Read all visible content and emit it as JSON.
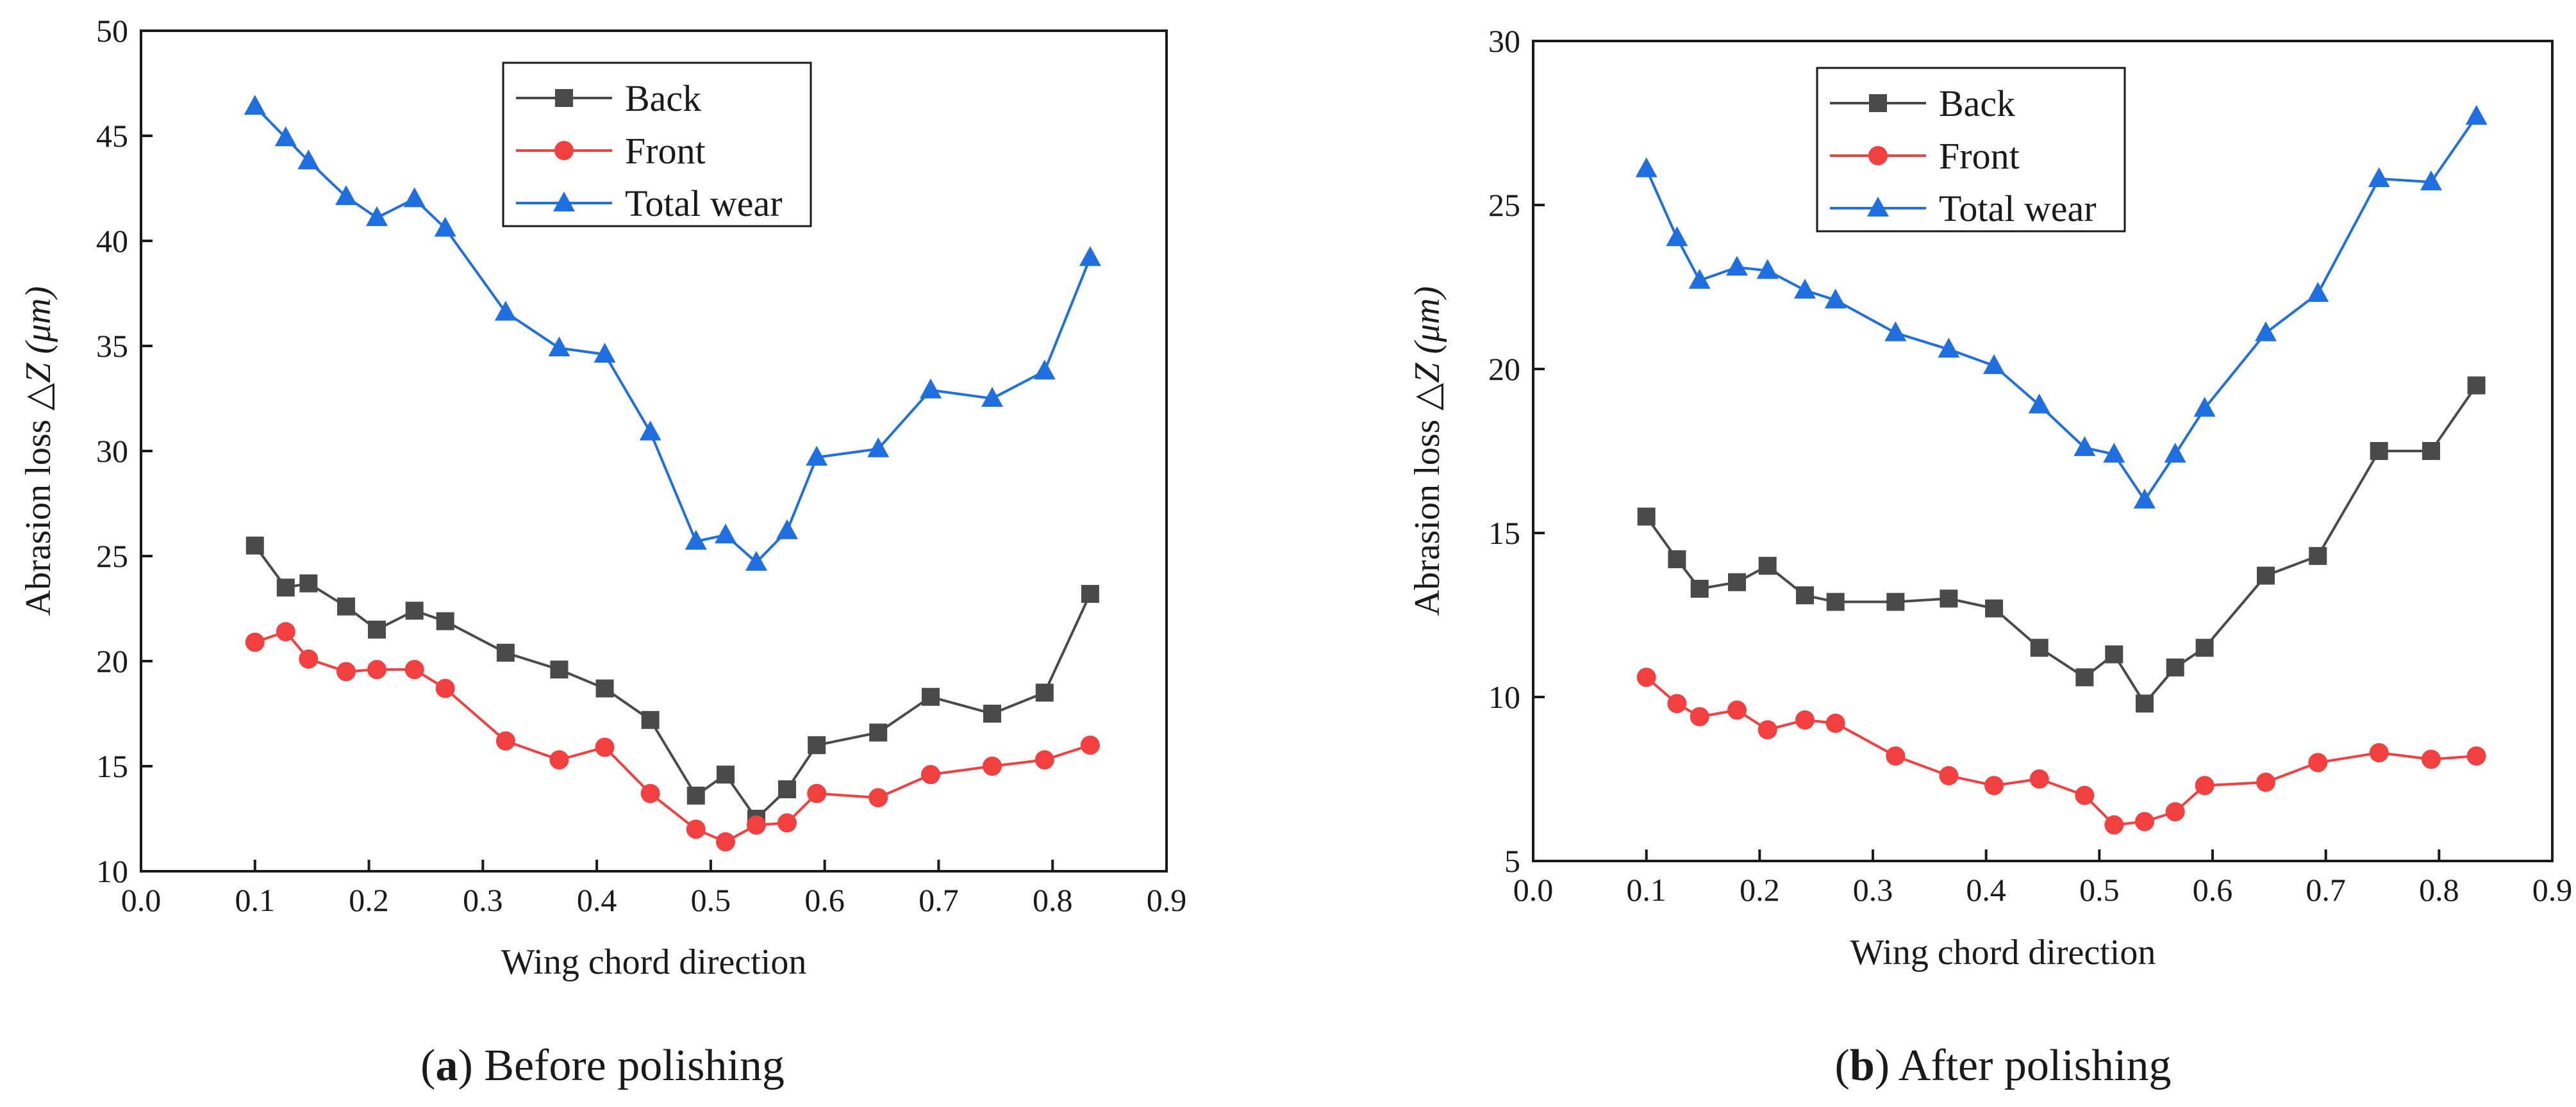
{
  "colors": {
    "back": "#4a4a4a",
    "front": "#f24040",
    "total": "#1f6fe0"
  },
  "chart_data": [
    {
      "type": "line",
      "panel": "a",
      "caption": {
        "letter": "a",
        "text": " Before polishing"
      },
      "xlabel": "Wing chord direction",
      "ylabel": {
        "text": "Abrasion loss ",
        "symbol": "△Z ",
        "unit": "(μm)"
      },
      "xlim": [
        0.0,
        0.9
      ],
      "ylim": [
        10,
        50
      ],
      "xticks": [
        "0.0",
        "0.1",
        "0.2",
        "0.3",
        "0.4",
        "0.5",
        "0.6",
        "0.7",
        "0.8",
        "0.9"
      ],
      "yticks": [
        "10",
        "15",
        "20",
        "25",
        "30",
        "35",
        "40",
        "45",
        "50"
      ],
      "legend_position": "top-center",
      "x": [
        0.1,
        0.127,
        0.147,
        0.18,
        0.207,
        0.24,
        0.267,
        0.32,
        0.367,
        0.407,
        0.447,
        0.487,
        0.513,
        0.54,
        0.567,
        0.593,
        0.647,
        0.693,
        0.747,
        0.793,
        0.833
      ],
      "series": [
        {
          "name": "Back",
          "marker": "square",
          "color_key": "back",
          "values": [
            25.5,
            23.5,
            23.7,
            22.6,
            21.5,
            22.4,
            21.9,
            20.4,
            19.6,
            18.7,
            17.2,
            13.6,
            14.6,
            12.5,
            13.9,
            16.0,
            16.6,
            18.3,
            17.5,
            18.5,
            23.2
          ]
        },
        {
          "name": "Front",
          "marker": "circle",
          "color_key": "front",
          "values": [
            20.9,
            21.4,
            20.1,
            19.5,
            19.6,
            19.6,
            18.7,
            16.2,
            15.3,
            15.9,
            13.7,
            12.0,
            11.4,
            12.2,
            12.3,
            13.7,
            13.5,
            14.6,
            15.0,
            15.3,
            16.0
          ]
        },
        {
          "name": "Total wear",
          "marker": "triangle",
          "color_key": "total",
          "values": [
            46.4,
            44.9,
            43.8,
            42.1,
            41.1,
            42.0,
            40.6,
            36.6,
            34.9,
            34.6,
            30.9,
            25.7,
            26.0,
            24.7,
            26.2,
            29.7,
            30.1,
            32.9,
            32.5,
            33.8,
            39.2
          ]
        }
      ]
    },
    {
      "type": "line",
      "panel": "b",
      "caption": {
        "letter": "b",
        "text": " After polishing"
      },
      "xlabel": "Wing chord direction",
      "ylabel": {
        "text": "Abrasion loss ",
        "symbol": "△Z ",
        "unit": "(μm)"
      },
      "xlim": [
        0.0,
        0.9
      ],
      "ylim": [
        5,
        30
      ],
      "xticks": [
        "0.0",
        "0.1",
        "0.2",
        "0.3",
        "0.4",
        "0.5",
        "0.6",
        "0.7",
        "0.8",
        "0.9"
      ],
      "yticks": [
        "5",
        "10",
        "15",
        "20",
        "25",
        "30"
      ],
      "legend_position": "top-center",
      "x": [
        0.1,
        0.127,
        0.147,
        0.18,
        0.207,
        0.24,
        0.267,
        0.32,
        0.367,
        0.407,
        0.447,
        0.487,
        0.513,
        0.54,
        0.567,
        0.593,
        0.647,
        0.693,
        0.747,
        0.793,
        0.833
      ],
      "series": [
        {
          "name": "Back",
          "marker": "square",
          "color_key": "back",
          "values": [
            15.5,
            14.2,
            13.3,
            13.5,
            14.0,
            13.1,
            12.9,
            12.9,
            13.0,
            12.7,
            11.5,
            10.6,
            11.3,
            9.8,
            10.9,
            11.5,
            13.7,
            14.3,
            17.5,
            17.5,
            19.5
          ]
        },
        {
          "name": "Front",
          "marker": "circle",
          "color_key": "front",
          "values": [
            10.6,
            9.8,
            9.4,
            9.6,
            9.0,
            9.3,
            9.2,
            8.2,
            7.6,
            7.3,
            7.5,
            7.0,
            6.1,
            6.2,
            6.5,
            7.3,
            7.4,
            8.0,
            8.3,
            8.1,
            8.2
          ]
        },
        {
          "name": "Total wear",
          "marker": "triangle",
          "color_key": "total",
          "values": [
            26.1,
            24.0,
            22.7,
            23.1,
            23.0,
            22.4,
            22.1,
            21.1,
            20.6,
            20.1,
            18.9,
            17.6,
            17.4,
            16.0,
            17.4,
            18.8,
            21.1,
            22.3,
            25.8,
            25.7,
            27.7
          ]
        }
      ]
    }
  ]
}
